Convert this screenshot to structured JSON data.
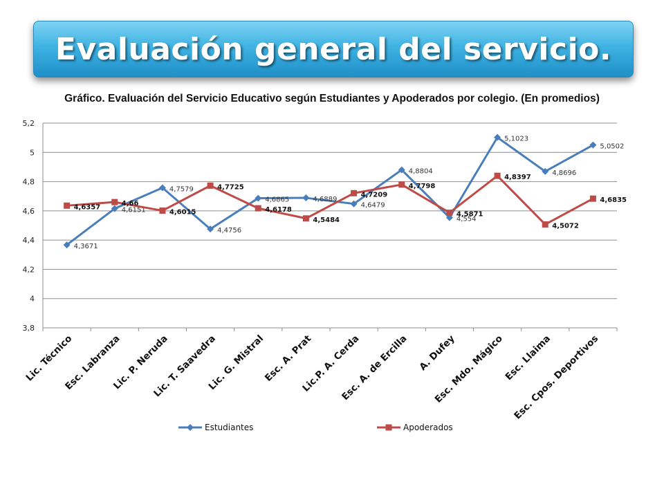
{
  "header": {
    "title": "Evaluación general del servicio."
  },
  "chart_data": {
    "type": "line",
    "title": "Gráfico. Evaluación del Servicio Educativo según Estudiantes y Apoderados por colegio. (En promedios)",
    "categories": [
      "Lic. Técnico",
      "Esc. Labranza",
      "Lic. P. Neruda",
      "Lic. T. Saavedra",
      "Lic. G. Mistral",
      "Esc. A. Prat",
      "Lic.P. A. Cerda",
      "Esc. A. de Ercilla",
      "A. Dufey",
      "Esc. Mdo. Mágico",
      "Esc. Llaima",
      "Esc. Cpos. Deportivos"
    ],
    "series": [
      {
        "name": "Estudiantes",
        "color": "#4a7ebb",
        "marker": "diamond",
        "values": [
          4.3671,
          4.6151,
          4.7579,
          4.4756,
          4.6865,
          4.6889,
          4.6479,
          4.8804,
          4.554,
          5.1023,
          4.8696,
          5.0502
        ],
        "labels": [
          "4,3671",
          "4,6151",
          "4,7579",
          "4,4756",
          "4,6865",
          "4,6889",
          "4,6479",
          "4,8804",
          "4,554",
          "5,1023",
          "4,8696",
          "5,0502"
        ]
      },
      {
        "name": "Apoderados",
        "color": "#be4b48",
        "marker": "square",
        "values": [
          4.6357,
          4.66,
          4.6015,
          4.7725,
          4.6178,
          4.5484,
          4.7209,
          4.7798,
          4.5871,
          4.8397,
          4.5072,
          4.6835
        ],
        "labels": [
          "4,6357",
          "4,66",
          "4,6015",
          "4,7725",
          "4,6178",
          "4,5484",
          "4,7209",
          "4,7798",
          "4,5871",
          "4,8397",
          "4,5072",
          "4,6835"
        ]
      }
    ],
    "ylim": [
      3.8,
      5.2
    ],
    "yticks": [
      3.8,
      4,
      4.2,
      4.4,
      4.6,
      4.8,
      5,
      5.2
    ],
    "ytick_labels": [
      "3,8",
      "4",
      "4,2",
      "4,4",
      "4,6",
      "4,8",
      "5",
      "5,2"
    ],
    "grid": true,
    "legend": "bottom"
  }
}
